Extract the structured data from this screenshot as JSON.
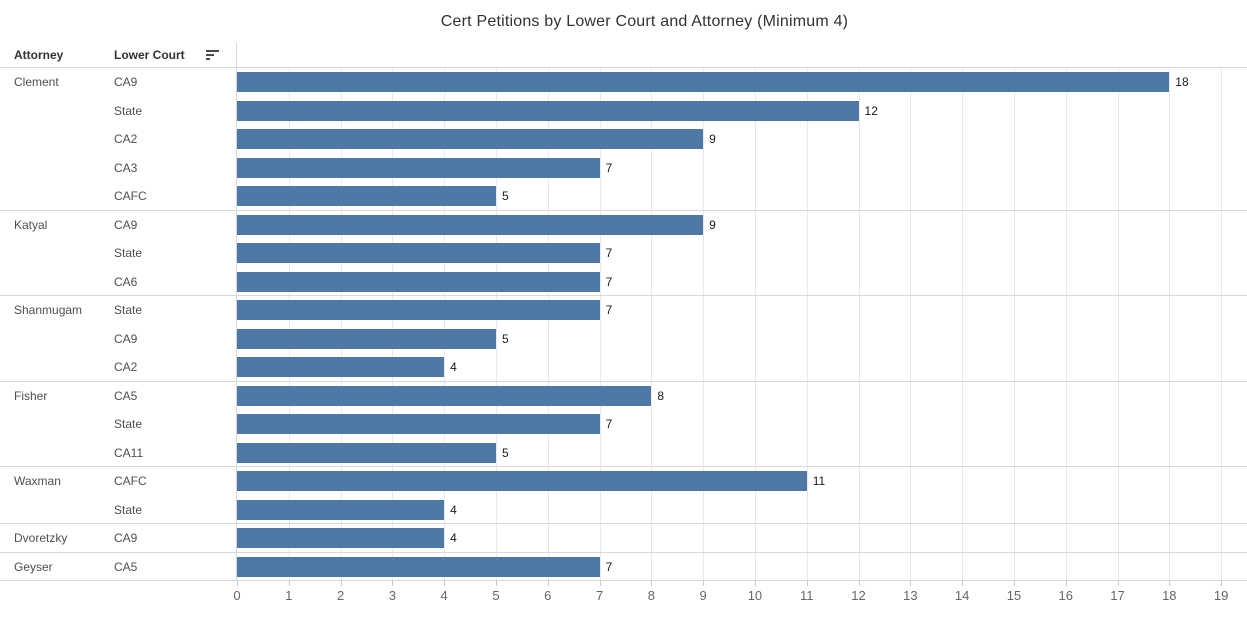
{
  "title": "Cert Petitions by Lower Court and Attorney (Minimum 4)",
  "columns": {
    "attorney": "Attorney",
    "lower_court": "Lower Court"
  },
  "icons": {
    "sort": "sort-descending-icon"
  },
  "colors": {
    "bar": "#4e79a7",
    "group_separator": "#d8d8d8",
    "gridline": "#e9e9e9",
    "axis_line": "#c9c9c9",
    "title_text": "#323232",
    "header_text": "#333333",
    "row_label_text": "#4f4f4f",
    "value_label_text": "#1a1a1a",
    "tick_label_text": "#666666"
  },
  "chart_data": {
    "type": "bar",
    "orientation": "horizontal",
    "title": "Cert Petitions by Lower Court and Attorney (Minimum 4)",
    "row_header_columns": [
      "Attorney",
      "Lower Court"
    ],
    "groups": [
      {
        "attorney": "Clement",
        "rows": [
          {
            "court": "CA9",
            "value": 18
          },
          {
            "court": "State",
            "value": 12
          },
          {
            "court": "CA2",
            "value": 9
          },
          {
            "court": "CA3",
            "value": 7
          },
          {
            "court": "CAFC",
            "value": 5
          }
        ]
      },
      {
        "attorney": "Katyal",
        "rows": [
          {
            "court": "CA9",
            "value": 9
          },
          {
            "court": "State",
            "value": 7
          },
          {
            "court": "CA6",
            "value": 7
          }
        ]
      },
      {
        "attorney": "Shanmugam",
        "rows": [
          {
            "court": "State",
            "value": 7
          },
          {
            "court": "CA9",
            "value": 5
          },
          {
            "court": "CA2",
            "value": 4
          }
        ]
      },
      {
        "attorney": "Fisher",
        "rows": [
          {
            "court": "CA5",
            "value": 8
          },
          {
            "court": "State",
            "value": 7
          },
          {
            "court": "CA11",
            "value": 5
          }
        ]
      },
      {
        "attorney": "Waxman",
        "rows": [
          {
            "court": "CAFC",
            "value": 11
          },
          {
            "court": "State",
            "value": 4
          }
        ]
      },
      {
        "attorney": "Dvoretzky",
        "rows": [
          {
            "court": "CA9",
            "value": 4
          }
        ]
      },
      {
        "attorney": "Geyser",
        "rows": [
          {
            "court": "CA5",
            "value": 7
          }
        ]
      }
    ],
    "xlabel": "",
    "ylabel": "",
    "xlim": [
      0,
      19.5
    ],
    "x_ticks": [
      0,
      1,
      2,
      3,
      4,
      5,
      6,
      7,
      8,
      9,
      10,
      11,
      12,
      13,
      14,
      15,
      16,
      17,
      18,
      19
    ],
    "gridlines": true,
    "value_labels": true,
    "legend": "none"
  }
}
